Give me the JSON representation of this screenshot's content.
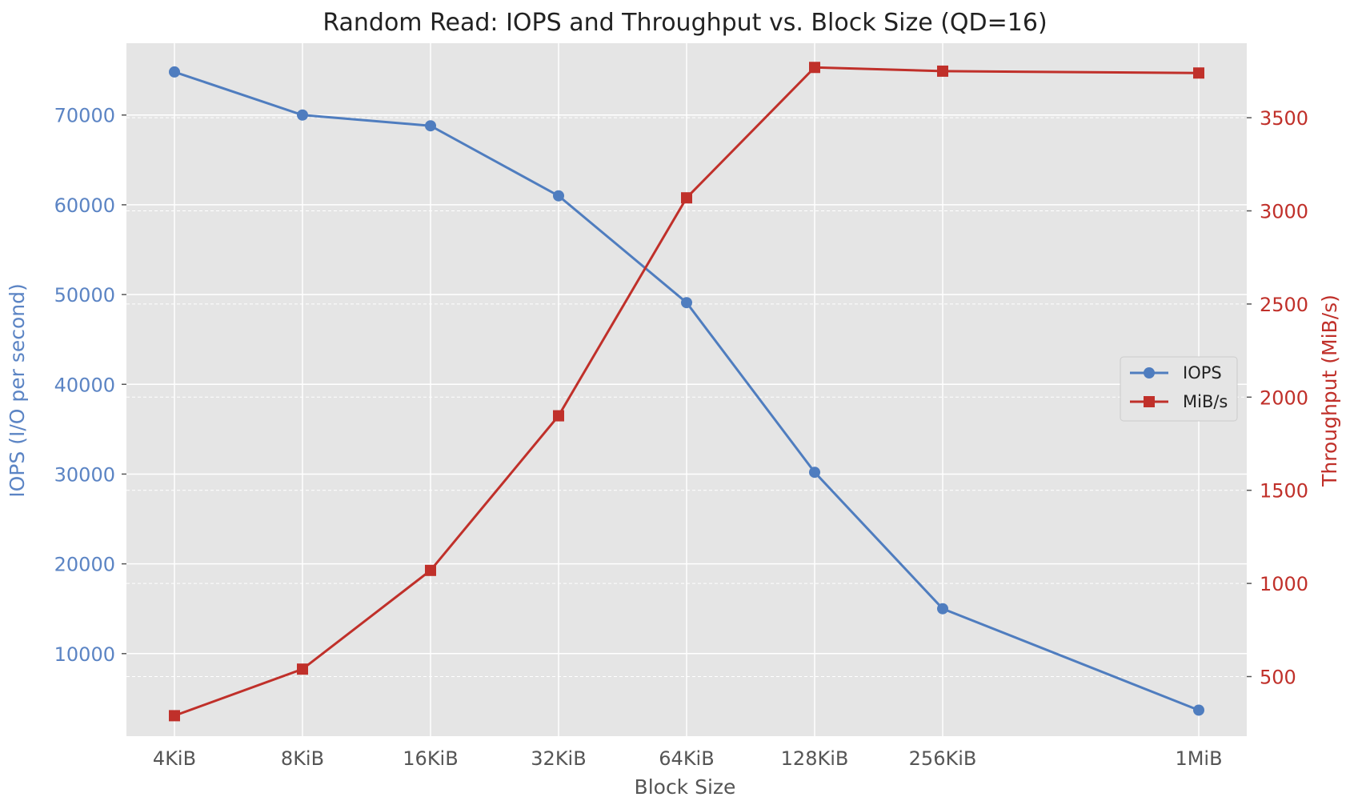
{
  "chart_data": {
    "type": "line",
    "title": "Random Read: IOPS and Throughput vs. Block Size (QD=16)",
    "xlabel": "Block Size",
    "ylabel": "IOPS (I/O per second)",
    "y2label": "Throughput (MiB/s)",
    "categories": [
      "4KiB",
      "8KiB",
      "16KiB",
      "32KiB",
      "64KiB",
      "128KiB",
      "256KiB",
      "1MiB"
    ],
    "x_positions_log2_kib": [
      2,
      3,
      4,
      5,
      6,
      7,
      8,
      10
    ],
    "ylim": [
      800,
      78000
    ],
    "y2lim": [
      180,
      3900
    ],
    "yticks": [
      10000,
      20000,
      30000,
      40000,
      50000,
      60000,
      70000
    ],
    "y2ticks": [
      500,
      1000,
      1500,
      2000,
      2500,
      3000,
      3500
    ],
    "grid": true,
    "legend_position": "center-right",
    "series": [
      {
        "name": "IOPS",
        "axis": "left",
        "color": "#4f7dbf",
        "marker": "circle",
        "values": [
          74800,
          70000,
          68800,
          61000,
          49100,
          30200,
          15000,
          3700
        ]
      },
      {
        "name": "MiB/s",
        "axis": "right",
        "color": "#c0302a",
        "marker": "square",
        "values": [
          290,
          540,
          1070,
          1900,
          3070,
          3770,
          3750,
          3740
        ]
      }
    ],
    "colors": {
      "plot_background": "#e5e5e5",
      "grid": "#ffffff",
      "left_axis": "#5b84c4",
      "right_axis": "#c0302a"
    }
  }
}
